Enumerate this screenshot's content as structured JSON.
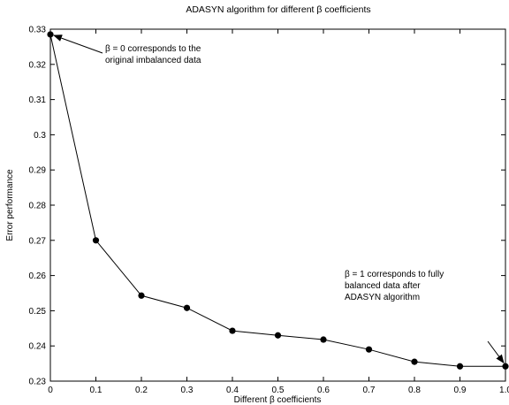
{
  "chart_data": {
    "type": "line",
    "title": "ADASYN algorithm for different β coefficients",
    "xlabel": "Different β coefficients",
    "ylabel": "Error performance",
    "xlim": [
      0,
      1
    ],
    "ylim": [
      0.23,
      0.33
    ],
    "xticks": [
      "0",
      "0.1",
      "0.2",
      "0.3",
      "0.4",
      "0.5",
      "0.6",
      "0.7",
      "0.8",
      "0.9",
      "1.0"
    ],
    "yticks": [
      "0.23",
      "0.24",
      "0.25",
      "0.26",
      "0.27",
      "0.28",
      "0.29",
      "0.3",
      "0.31",
      "0.32",
      "0.33"
    ],
    "grid": false,
    "series": [
      {
        "x": [
          0,
          0.1,
          0.2,
          0.3,
          0.4,
          0.5,
          0.6,
          0.7,
          0.8,
          0.9,
          1.0
        ],
        "values": [
          0.3285,
          0.27,
          0.2543,
          0.2508,
          0.2443,
          0.243,
          0.2418,
          0.239,
          0.2355,
          0.2342,
          0.2342
        ],
        "color": "#000000",
        "marker": "filled-circle"
      }
    ],
    "annotations": [
      {
        "lines": [
          "β = 0 corresponds to the",
          "original imbalanced data"
        ],
        "points_to": [
          0,
          0.3285
        ]
      },
      {
        "lines": [
          "β = 1 corresponds to fully",
          "balanced data after",
          "ADASYN algorithm"
        ],
        "points_to": [
          1.0,
          0.2342
        ]
      }
    ]
  }
}
